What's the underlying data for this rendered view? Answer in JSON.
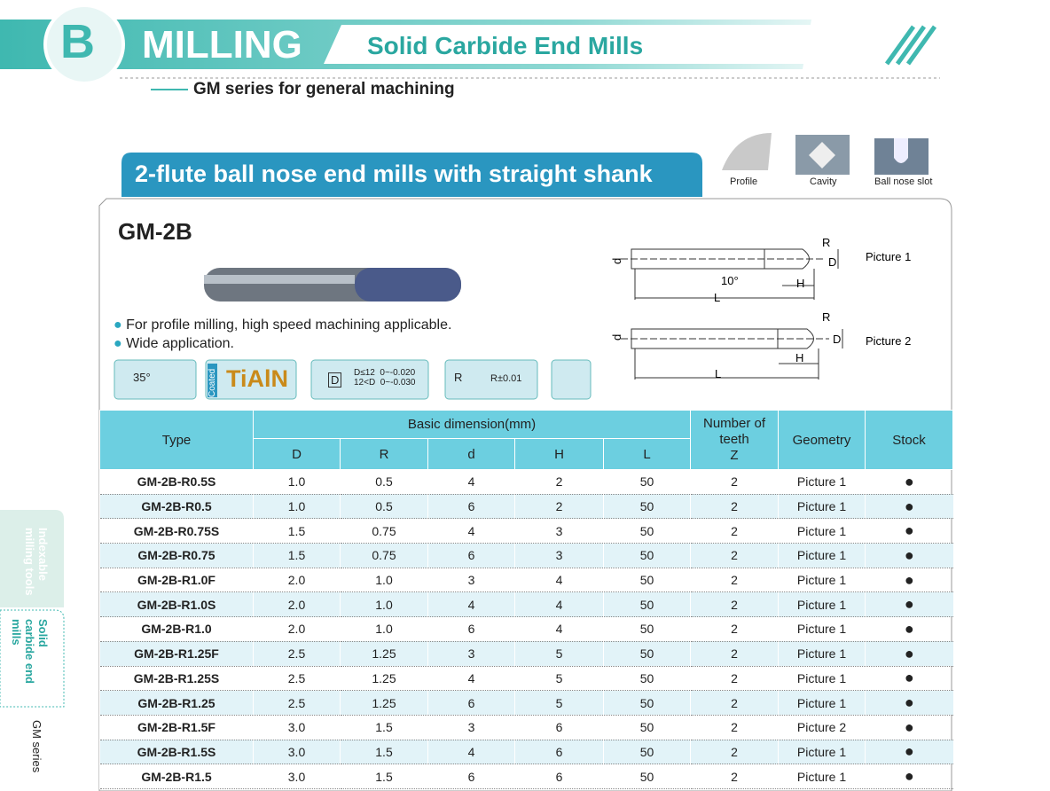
{
  "header": {
    "letter": "B",
    "title": "MILLING",
    "subtitle": "Solid Carbide End Mills",
    "series": "GM series for general machining"
  },
  "section_title": "2-flute ball nose end mills with straight shank",
  "applications": [
    "Profile",
    "Cavity",
    "Ball nose slot"
  ],
  "product": "GM-2B",
  "features": [
    "For profile milling, high speed machining applicable.",
    "Wide application."
  ],
  "icons": {
    "helix": "35°",
    "coated": "Coated",
    "coating": "TiAlN",
    "tol_symbol": "D",
    "tol_lines": [
      "D≤12  0~-0.020",
      "12<D  0~-0.030"
    ],
    "radius_symbol": "R",
    "radius_tol": "R±0.01"
  },
  "diagrams": [
    {
      "label": "Picture 1",
      "R": "R",
      "D": "D",
      "d": "d",
      "H": "H",
      "L": "L",
      "angle": "10°"
    },
    {
      "label": "Picture 2",
      "R": "R",
      "D": "D",
      "d": "d",
      "H": "H",
      "L": "L"
    }
  ],
  "table": {
    "header": {
      "type": "Type",
      "basic": "Basic dimension(mm)",
      "dims": [
        "D",
        "R",
        "d",
        "H",
        "L"
      ],
      "teeth": [
        "Number of",
        "teeth",
        "Z"
      ],
      "geometry": "Geometry",
      "stock": "Stock"
    },
    "rows": [
      [
        "GM-2B-R0.5S",
        "1.0",
        "0.5",
        "4",
        "2",
        "50",
        "2",
        "Picture 1",
        "●"
      ],
      [
        "GM-2B-R0.5",
        "1.0",
        "0.5",
        "6",
        "2",
        "50",
        "2",
        "Picture 1",
        "●"
      ],
      [
        "GM-2B-R0.75S",
        "1.5",
        "0.75",
        "4",
        "3",
        "50",
        "2",
        "Picture 1",
        "●"
      ],
      [
        "GM-2B-R0.75",
        "1.5",
        "0.75",
        "6",
        "3",
        "50",
        "2",
        "Picture 1",
        "●"
      ],
      [
        "GM-2B-R1.0F",
        "2.0",
        "1.0",
        "3",
        "4",
        "50",
        "2",
        "Picture 1",
        "●"
      ],
      [
        "GM-2B-R1.0S",
        "2.0",
        "1.0",
        "4",
        "4",
        "50",
        "2",
        "Picture 1",
        "●"
      ],
      [
        "GM-2B-R1.0",
        "2.0",
        "1.0",
        "6",
        "4",
        "50",
        "2",
        "Picture 1",
        "●"
      ],
      [
        "GM-2B-R1.25F",
        "2.5",
        "1.25",
        "3",
        "5",
        "50",
        "2",
        "Picture 1",
        "●"
      ],
      [
        "GM-2B-R1.25S",
        "2.5",
        "1.25",
        "4",
        "5",
        "50",
        "2",
        "Picture 1",
        "●"
      ],
      [
        "GM-2B-R1.25",
        "2.5",
        "1.25",
        "6",
        "5",
        "50",
        "2",
        "Picture 1",
        "●"
      ],
      [
        "GM-2B-R1.5F",
        "3.0",
        "1.5",
        "3",
        "6",
        "50",
        "2",
        "Picture 2",
        "●"
      ],
      [
        "GM-2B-R1.5S",
        "3.0",
        "1.5",
        "4",
        "6",
        "50",
        "2",
        "Picture 1",
        "●"
      ],
      [
        "GM-2B-R1.5",
        "3.0",
        "1.5",
        "6",
        "6",
        "50",
        "2",
        "Picture 1",
        "●"
      ]
    ]
  },
  "side_tabs": [
    "Indexable milling tools",
    "Solid carbide end mills",
    "GM series"
  ]
}
